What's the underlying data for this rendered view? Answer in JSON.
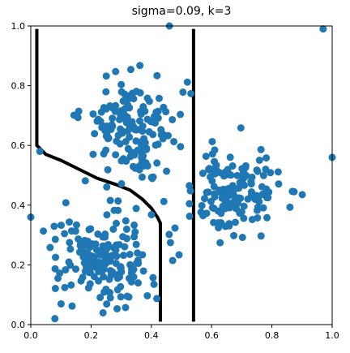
{
  "chart_data": {
    "type": "scatter",
    "title": "sigma=0.09, k=3",
    "xlabel": "",
    "ylabel": "",
    "xlim": [
      0,
      1
    ],
    "ylim": [
      0,
      1
    ],
    "grid": false,
    "x_ticks": [
      "0.0",
      "0.2",
      "0.4",
      "0.6",
      "0.8",
      "1.0"
    ],
    "y_ticks": [
      "0.0",
      "0.2",
      "0.4",
      "0.6",
      "0.8",
      "1.0"
    ],
    "colors": {
      "points": "#1f77b4",
      "boundary": "#000000"
    },
    "clusters": [
      {
        "center": [
          0.25,
          0.22
        ],
        "spread": [
          0.08,
          0.08
        ],
        "count": 170,
        "seed": 7
      },
      {
        "center": [
          0.33,
          0.66
        ],
        "spread": [
          0.08,
          0.08
        ],
        "count": 160,
        "seed": 19
      },
      {
        "center": [
          0.67,
          0.44
        ],
        "spread": [
          0.08,
          0.07
        ],
        "count": 150,
        "seed": 31
      }
    ],
    "outliers": [
      [
        0.0,
        0.36
      ],
      [
        0.46,
        1.0
      ],
      [
        1.0,
        0.56
      ],
      [
        0.03,
        0.58
      ],
      [
        0.08,
        0.02
      ],
      [
        0.97,
        0.99
      ]
    ],
    "decision_boundaries": [
      {
        "name": "left-boundary",
        "points": [
          [
            0.02,
            0.99
          ],
          [
            0.02,
            0.6
          ],
          [
            0.05,
            0.57
          ],
          [
            0.1,
            0.55
          ],
          [
            0.16,
            0.52
          ],
          [
            0.22,
            0.49
          ],
          [
            0.28,
            0.47
          ],
          [
            0.33,
            0.45
          ],
          [
            0.37,
            0.42
          ],
          [
            0.4,
            0.39
          ],
          [
            0.42,
            0.36
          ],
          [
            0.43,
            0.34
          ],
          [
            0.43,
            0.01
          ]
        ]
      },
      {
        "name": "right-boundary",
        "points": [
          [
            0.54,
            0.99
          ],
          [
            0.54,
            0.01
          ]
        ]
      }
    ]
  }
}
